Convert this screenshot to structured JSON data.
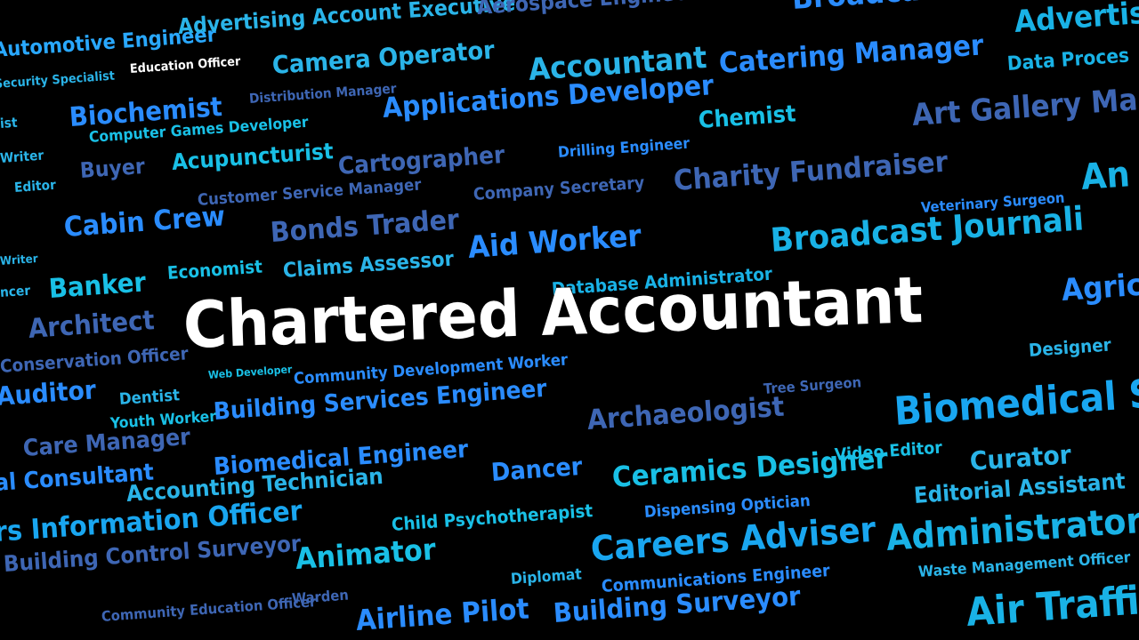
{
  "featured_word": "Chartered Accountant",
  "words": [
    {
      "text": "Automotive Engineer",
      "color": "#29a8ff"
    },
    {
      "text": "Advertising Account Executive",
      "color": "#2ab4e8"
    },
    {
      "text": "Aerospace Engineer",
      "color": "#3e66b4"
    },
    {
      "text": "Broadcast",
      "color": "#2a8cff"
    },
    {
      "text": "Advertis",
      "color": "#19b2e6"
    },
    {
      "text": "Education Officer",
      "color": "#ffffff"
    },
    {
      "text": "Security Specialist",
      "color": "#2ab4e8"
    },
    {
      "text": "Camera Operator",
      "color": "#2ab4e8"
    },
    {
      "text": "Accountant",
      "color": "#2ab4e8"
    },
    {
      "text": "Catering Manager",
      "color": "#2a8cff"
    },
    {
      "text": "Data Proces",
      "color": "#19b2e6"
    },
    {
      "text": "Biochemist",
      "color": "#2a8cff"
    },
    {
      "text": "Distribution Manager",
      "color": "#3e66b4"
    },
    {
      "text": "Applications Developer",
      "color": "#2a8cff"
    },
    {
      "text": "Chemist",
      "color": "#19c0e6"
    },
    {
      "text": "Art Gallery Ma",
      "color": "#3e66b4"
    },
    {
      "text": "ist",
      "color": "#2ab4e8"
    },
    {
      "text": "Computer Games Developer",
      "color": "#19c0e6"
    },
    {
      "text": "Writer",
      "color": "#2ab4e8"
    },
    {
      "text": "Buyer",
      "color": "#3e66b4"
    },
    {
      "text": "Acupuncturist",
      "color": "#19c0e6"
    },
    {
      "text": "Cartographer",
      "color": "#3e66b4"
    },
    {
      "text": "Drilling Engineer",
      "color": "#2a8cff"
    },
    {
      "text": "Charity Fundraiser",
      "color": "#3e66b4"
    },
    {
      "text": "An",
      "color": "#19b2e6"
    },
    {
      "text": "Editor",
      "color": "#2ab4e8"
    },
    {
      "text": "Customer Service Manager",
      "color": "#3e66b4"
    },
    {
      "text": "Company Secretary",
      "color": "#3e66b4"
    },
    {
      "text": "Veterinary Surgeon",
      "color": "#2a8cff"
    },
    {
      "text": "Cabin Crew",
      "color": "#2a8cff"
    },
    {
      "text": "Bonds Trader",
      "color": "#3e66b4"
    },
    {
      "text": "Aid Worker",
      "color": "#2a8cff"
    },
    {
      "text": "Broadcast Journali",
      "color": "#19b2e6"
    },
    {
      "text": "Writer",
      "color": "#2ab4e8"
    },
    {
      "text": "Economist",
      "color": "#19c0e6"
    },
    {
      "text": "Claims Assessor",
      "color": "#2ab4e8"
    },
    {
      "text": "ncer",
      "color": "#2ab4e8"
    },
    {
      "text": "Banker",
      "color": "#19c0e6"
    },
    {
      "text": "Database Administrator",
      "color": "#19b2e6"
    },
    {
      "text": "Agric",
      "color": "#2a8cff"
    },
    {
      "text": "Architect",
      "color": "#3e66b4"
    },
    {
      "text": "Designer",
      "color": "#2ab4e8"
    },
    {
      "text": "Conservation Officer",
      "color": "#3e66b4"
    },
    {
      "text": "Web Developer",
      "color": "#19c0e6"
    },
    {
      "text": "Community Development Worker",
      "color": "#2a8cff"
    },
    {
      "text": "Tree Surgeon",
      "color": "#3e66b4"
    },
    {
      "text": "Auditor",
      "color": "#2a8cff"
    },
    {
      "text": "Dentist",
      "color": "#2ab4e8"
    },
    {
      "text": "Building Services Engineer",
      "color": "#2a8cff"
    },
    {
      "text": "Archaeologist",
      "color": "#3e66b4"
    },
    {
      "text": "Biomedical S",
      "color": "#19a6f0"
    },
    {
      "text": "Youth Worker",
      "color": "#19c0e6"
    },
    {
      "text": "Care Manager",
      "color": "#3e66b4"
    },
    {
      "text": "Video Editor",
      "color": "#19c0e6"
    },
    {
      "text": "Curator",
      "color": "#2ab4e8"
    },
    {
      "text": "Biomedical Engineer",
      "color": "#2a8cff"
    },
    {
      "text": "Dancer",
      "color": "#2a8cff"
    },
    {
      "text": "Ceramics Designer",
      "color": "#19c0e6"
    },
    {
      "text": "al Consultant",
      "color": "#2a8cff"
    },
    {
      "text": "Accounting Technician",
      "color": "#2ab4e8"
    },
    {
      "text": "Editorial Assistant",
      "color": "#2ab4e8"
    },
    {
      "text": "Dispensing Optician",
      "color": "#2a8cff"
    },
    {
      "text": "rs Information Officer",
      "color": "#19a6f0"
    },
    {
      "text": "Child Psychotherapist",
      "color": "#19c0e6"
    },
    {
      "text": "Careers Adviser",
      "color": "#19a6f0"
    },
    {
      "text": "Administrator",
      "color": "#19b2e6"
    },
    {
      "text": "Animator",
      "color": "#19c0e6"
    },
    {
      "text": "Building Control Surveyor",
      "color": "#3e66b4"
    },
    {
      "text": "Diplomat",
      "color": "#2ab4e8"
    },
    {
      "text": "Communications Engineer",
      "color": "#2a8cff"
    },
    {
      "text": "Waste Management Officer",
      "color": "#2ab4e8"
    },
    {
      "text": "Warden",
      "color": "#3e66b4"
    },
    {
      "text": "Community Education Officer",
      "color": "#3e66b4"
    },
    {
      "text": "Airline Pilot",
      "color": "#2a8cff"
    },
    {
      "text": "Building Surveyor",
      "color": "#2a8cff"
    },
    {
      "text": "Air Traffi",
      "color": "#19b2e6"
    }
  ]
}
